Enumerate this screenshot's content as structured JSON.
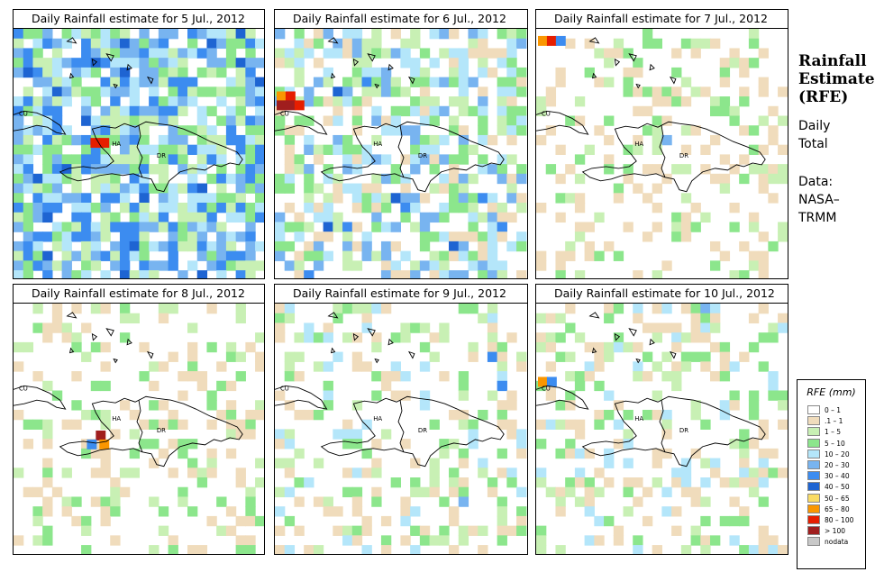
{
  "panels": [
    {
      "title": "Daily Rainfall estimate for  5 Jul., 2012",
      "labels": {
        "cu": "CU",
        "ha": "HA",
        "dr": "DR"
      }
    },
    {
      "title": "Daily Rainfall estimate for  6 Jul., 2012",
      "labels": {
        "cu": "CU",
        "ha": "HA",
        "dr": "DR"
      }
    },
    {
      "title": "Daily Rainfall estimate for  7 Jul., 2012",
      "labels": {
        "cu": "CU",
        "ha": "HA",
        "dr": "DR"
      }
    },
    {
      "title": "Daily Rainfall estimate for  8 Jul., 2012",
      "labels": {
        "cu": "CU",
        "ha": "HA",
        "dr": "DR"
      }
    },
    {
      "title": "Daily Rainfall estimate for  9 Jul., 2012",
      "labels": {
        "cu": "CU",
        "ha": "HA",
        "dr": "DR"
      }
    },
    {
      "title": "Daily Rainfall estimate for  10 Jul., 2012",
      "labels": {
        "cu": "CU",
        "ha": "HA",
        "dr": "DR"
      }
    }
  ],
  "side": {
    "title_lines": [
      "Rainfall",
      "Estimate",
      "(RFE)"
    ],
    "daily": "Daily",
    "total": "Total",
    "data_label": "Data:",
    "nasa": "NASA–",
    "trmm": "TRMM"
  },
  "legend": {
    "title": "RFE (mm)",
    "items": [
      {
        "label": "0 – 1",
        "color": "#ffffff"
      },
      {
        "label": ".1 – 1",
        "color": "#f0dcbc"
      },
      {
        "label": "1 – 5",
        "color": "#c8f0b4"
      },
      {
        "label": "5 – 10",
        "color": "#8ce68c"
      },
      {
        "label": "10 – 20",
        "color": "#b4e6fa"
      },
      {
        "label": "20 – 30",
        "color": "#78b4f0"
      },
      {
        "label": "30 – 40",
        "color": "#3c8cf0"
      },
      {
        "label": "40 – 50",
        "color": "#1e64d2"
      },
      {
        "label": "50 – 65",
        "color": "#fadc64"
      },
      {
        "label": "65 – 80",
        "color": "#fa9600"
      },
      {
        "label": "80 – 100",
        "color": "#e61e00"
      },
      {
        "label": "> 100",
        "color": "#a01e1e"
      },
      {
        "label": "nodata",
        "color": "#c8c8c8"
      }
    ]
  }
}
